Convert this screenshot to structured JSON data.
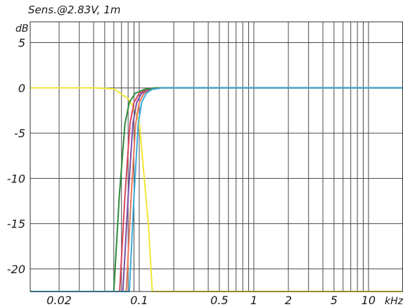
{
  "chart_data": {
    "type": "line",
    "title": "Sens.@2.83V, 1m",
    "ylabel": "dB",
    "xunit": "kHz",
    "xscale": "log",
    "xlim": [
      0.0112,
      20
    ],
    "ylim": [
      -22.5,
      7.3
    ],
    "grid": true,
    "legend": "none",
    "y_ticks": [
      {
        "value": 5,
        "label": "5"
      },
      {
        "value": 0,
        "label": "0"
      },
      {
        "value": -5,
        "label": "-5"
      },
      {
        "value": -10,
        "label": "-10"
      },
      {
        "value": -15,
        "label": "-15"
      },
      {
        "value": -20,
        "label": "-20"
      }
    ],
    "x_ticks": [
      {
        "value": 0.02,
        "label": "0.02"
      },
      {
        "value": 0.1,
        "label": "0.1"
      },
      {
        "value": 0.5,
        "label": "0.5"
      },
      {
        "value": 1,
        "label": "1"
      },
      {
        "value": 2,
        "label": "2"
      },
      {
        "value": 5,
        "label": "5"
      },
      {
        "value": 10,
        "label": "10"
      }
    ],
    "gridlines_x": [
      0.02,
      0.03,
      0.04,
      0.05,
      0.06,
      0.07,
      0.08,
      0.09,
      0.1,
      0.2,
      0.3,
      0.4,
      0.5,
      0.6,
      0.7,
      0.8,
      0.9,
      1,
      2,
      3,
      4,
      5,
      6,
      7,
      8,
      9,
      10,
      20
    ],
    "gridlines_y": [
      5,
      0,
      -5,
      -10,
      -15,
      -20
    ],
    "series": [
      {
        "color": "#f2e634",
        "x": [
          0.0112,
          0.04,
          0.06,
          0.08,
          0.09,
          0.1,
          0.12,
          0.13,
          0.2,
          20
        ],
        "y": [
          0,
          0,
          -0.1,
          -1.2,
          -2.2,
          -3.8,
          -15,
          -22.5,
          -22.5,
          -22.5
        ]
      },
      {
        "color": "#d8465a",
        "x": [
          0.0675,
          0.075,
          0.083,
          0.09,
          0.1,
          0.12,
          0.15,
          0.2,
          20
        ],
        "y": [
          -22.5,
          -12,
          -4,
          -1.6,
          -0.6,
          -0.15,
          0,
          0,
          0
        ]
      },
      {
        "color": "#7a4fa8",
        "x": [
          0.072,
          0.08,
          0.088,
          0.095,
          0.105,
          0.125,
          0.155,
          0.2,
          20
        ],
        "y": [
          -22.5,
          -12,
          -4,
          -1.6,
          -0.6,
          -0.15,
          0,
          0,
          0
        ]
      },
      {
        "color": "#2e8c3a",
        "x": [
          0.06,
          0.067,
          0.075,
          0.082,
          0.092,
          0.112,
          0.14,
          0.2,
          20
        ],
        "y": [
          -22.5,
          -12,
          -4,
          -1.6,
          -0.6,
          -0.15,
          0,
          0,
          0
        ]
      },
      {
        "color": "#e8785a",
        "x": [
          0.077,
          0.085,
          0.093,
          0.1,
          0.11,
          0.13,
          0.16,
          0.2,
          20
        ],
        "y": [
          -22.5,
          -12,
          -4,
          -1.6,
          -0.6,
          -0.15,
          0,
          0,
          0
        ]
      },
      {
        "color": "#3aaad8",
        "x": [
          0.0112,
          0.07,
          0.082,
          0.09,
          0.098,
          0.105,
          0.115,
          0.13,
          0.16,
          0.2,
          20
        ],
        "y": [
          -22.5,
          -22.5,
          -22.5,
          -12,
          -4,
          -1.6,
          -0.6,
          -0.15,
          0,
          0,
          0
        ]
      }
    ]
  }
}
